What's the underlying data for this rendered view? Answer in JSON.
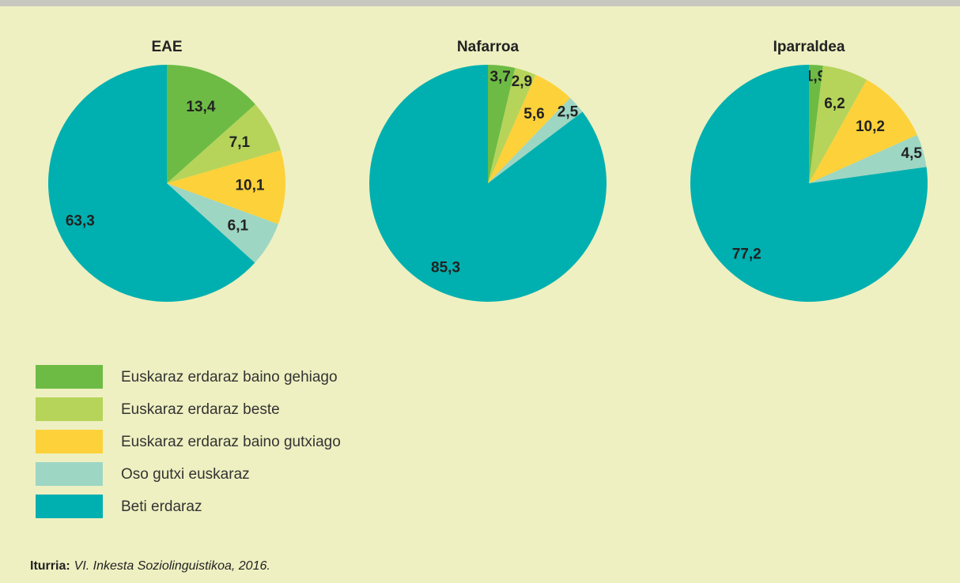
{
  "chart_data": [
    {
      "type": "pie",
      "title": "EAE",
      "categories": [
        "Euskaraz erdaraz baino gehiago",
        "Euskaraz erdaraz beste",
        "Euskaraz erdaraz baino gutxiago",
        "Oso gutxi euskaraz",
        "Beti erdaraz"
      ],
      "values": [
        13.4,
        7.1,
        10.1,
        6.1,
        63.3
      ],
      "value_labels": [
        "13,4",
        "7,1",
        "10,1",
        "6,1",
        "63,3"
      ],
      "colors": [
        "#6dbb45",
        "#b6d45a",
        "#fdd139",
        "#9ed6c4",
        "#00b0b0"
      ]
    },
    {
      "type": "pie",
      "title": "Nafarroa",
      "categories": [
        "Euskaraz erdaraz baino gehiago",
        "Euskaraz erdaraz beste",
        "Euskaraz erdaraz baino gutxiago",
        "Oso gutxi euskaraz",
        "Beti erdaraz"
      ],
      "values": [
        3.7,
        2.9,
        5.6,
        2.5,
        85.3
      ],
      "value_labels": [
        "3,7",
        "2,9",
        "5,6",
        "2,5",
        "85,3"
      ],
      "colors": [
        "#6dbb45",
        "#b6d45a",
        "#fdd139",
        "#9ed6c4",
        "#00b0b0"
      ]
    },
    {
      "type": "pie",
      "title": "Iparraldea",
      "categories": [
        "Euskaraz erdaraz baino gehiago",
        "Euskaraz erdaraz beste",
        "Euskaraz erdaraz baino gutxiago",
        "Oso gutxi euskaraz",
        "Beti erdaraz"
      ],
      "values": [
        1.9,
        6.2,
        10.2,
        4.5,
        77.2
      ],
      "value_labels": [
        "1,9",
        "6,2",
        "10,2",
        "4,5",
        "77,2"
      ],
      "colors": [
        "#6dbb45",
        "#b6d45a",
        "#fdd139",
        "#9ed6c4",
        "#00b0b0"
      ]
    }
  ],
  "source": {
    "label": "Iturria:",
    "text": "VI. Inkesta Soziolinguistikoa, 2016."
  }
}
